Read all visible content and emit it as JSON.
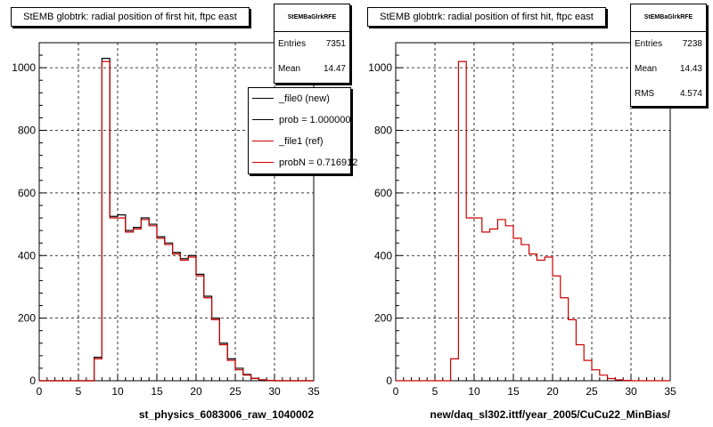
{
  "chart_data": [
    {
      "type": "histogram",
      "title": "StEMB globtrk: radial position of first hit, ftpc east",
      "xlabel": "st_physics_6083006_raw_1040002",
      "ylabel": "",
      "xlim": [
        0,
        35
      ],
      "ylim": [
        0,
        1080
      ],
      "x_ticks": [
        0,
        5,
        10,
        15,
        20,
        25,
        30,
        35
      ],
      "y_ticks": [
        0,
        200,
        400,
        600,
        800,
        1000
      ],
      "grid": true,
      "bin_width": 1,
      "x_start": 0,
      "series": [
        {
          "name": "_file0 (new)",
          "color": "#000000",
          "values": [
            0,
            0,
            0,
            0,
            0,
            0,
            0,
            75,
            1030,
            525,
            530,
            480,
            490,
            520,
            500,
            460,
            440,
            410,
            390,
            400,
            340,
            270,
            200,
            120,
            70,
            40,
            20,
            8,
            3,
            1,
            0,
            0,
            0,
            0,
            0
          ]
        },
        {
          "name": "_file1 (ref)",
          "color": "#cc0000",
          "values": [
            0,
            0,
            0,
            0,
            0,
            0,
            0,
            70,
            1020,
            520,
            520,
            475,
            485,
            515,
            495,
            455,
            435,
            405,
            385,
            395,
            335,
            265,
            195,
            115,
            65,
            35,
            18,
            7,
            3,
            1,
            0,
            0,
            0,
            0,
            0
          ]
        }
      ],
      "stats": {
        "header": "StEMBaGlrkRFE",
        "rows": [
          {
            "label": "Entries",
            "value": "7351"
          },
          {
            "label": "Mean",
            "value": "14.47"
          }
        ]
      },
      "legend": [
        {
          "label": "_file0 (new)",
          "color": "#000000"
        },
        {
          "label": "prob = 1.000000",
          "color": "#000000"
        },
        {
          "label": "_file1 (ref)",
          "color": "#cc0000"
        },
        {
          "label": "probN = 0.716912",
          "color": "#cc0000"
        }
      ]
    },
    {
      "type": "histogram",
      "title": "StEMB globtrk: radial position of first hit, ftpc east",
      "xlabel": "new/daq_sl302.ittf/year_2005/CuCu22_MinBias/",
      "ylabel": "",
      "xlim": [
        0,
        35
      ],
      "ylim": [
        0,
        1080
      ],
      "x_ticks": [
        0,
        5,
        10,
        15,
        20,
        25,
        30,
        35
      ],
      "y_ticks": [
        0,
        200,
        400,
        600,
        800,
        1000
      ],
      "grid": true,
      "bin_width": 1,
      "x_start": 0,
      "series": [
        {
          "name": "",
          "color": "#cc0000",
          "values": [
            0,
            0,
            0,
            0,
            0,
            0,
            0,
            70,
            1020,
            520,
            520,
            475,
            485,
            515,
            495,
            455,
            435,
            405,
            385,
            395,
            335,
            265,
            195,
            115,
            65,
            35,
            18,
            7,
            3,
            1,
            0,
            0,
            0,
            0,
            0
          ]
        }
      ],
      "stats": {
        "header": "StEMBaGlrkRFE",
        "rows": [
          {
            "label": "Entries",
            "value": "7238"
          },
          {
            "label": "Mean",
            "value": "14.43"
          },
          {
            "label": "RMS",
            "value": "4.574"
          }
        ]
      }
    }
  ]
}
